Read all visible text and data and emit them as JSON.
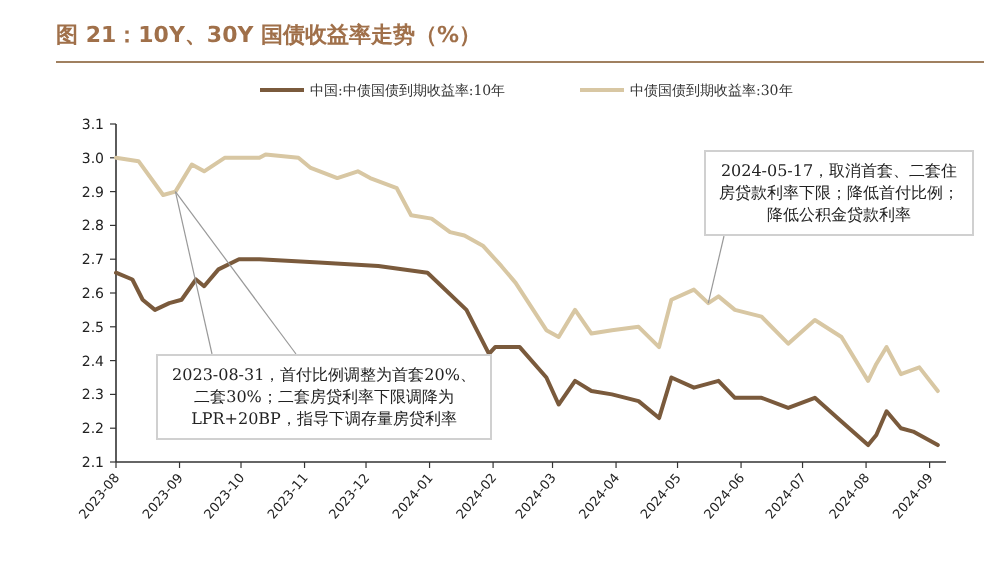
{
  "chart_data": {
    "type": "line",
    "title": "图 21：10Y、30Y 国债收益率走势（%）",
    "xlim": [
      "2023-08-01",
      "2024-09-09"
    ],
    "xticks": [
      "2023-08",
      "2023-09",
      "2023-10",
      "2023-11",
      "2023-12",
      "2024-01",
      "2024-02",
      "2024-03",
      "2024-04",
      "2024-05",
      "2024-06",
      "2024-07",
      "2024-08",
      "2024-09"
    ],
    "ylim": [
      2.1,
      3.1
    ],
    "yticks": [
      2.1,
      2.2,
      2.3,
      2.4,
      2.5,
      2.6,
      2.7,
      2.8,
      2.9,
      {
        "value": 3.0,
        "label": "3.0"
      },
      3.1
    ],
    "grid": false,
    "legend": "top",
    "marker": "none",
    "line_style": "solid",
    "series": [
      {
        "name": "中国:中债国债到期收益率:10年",
        "color": "#7a5a3c",
        "x": [
          "2023-08-01",
          "2023-08-09",
          "2023-08-14",
          "2023-08-20",
          "2023-08-27",
          "2023-09-02",
          "2023-09-09",
          "2023-09-13",
          "2023-09-20",
          "2023-09-30",
          "2023-10-10",
          "2023-11-08",
          "2023-12-07",
          "2023-12-31",
          "2024-01-19",
          "2024-01-30",
          "2024-02-02",
          "2024-02-14",
          "2024-02-27",
          "2024-03-04",
          "2024-03-12",
          "2024-03-20",
          "2024-03-30",
          "2024-04-12",
          "2024-04-22",
          "2024-04-28",
          "2024-05-09",
          "2024-05-21",
          "2024-05-29",
          "2024-06-11",
          "2024-06-24",
          "2024-07-07",
          "2024-07-20",
          "2024-08-02",
          "2024-08-06",
          "2024-08-11",
          "2024-08-18",
          "2024-08-24",
          "2024-09-05"
        ],
        "values": [
          2.66,
          2.64,
          2.58,
          2.55,
          2.57,
          2.58,
          2.64,
          2.62,
          2.67,
          2.7,
          2.7,
          2.69,
          2.68,
          2.66,
          2.55,
          2.42,
          2.44,
          2.44,
          2.35,
          2.27,
          2.34,
          2.31,
          2.3,
          2.28,
          2.23,
          2.35,
          2.32,
          2.34,
          2.29,
          2.29,
          2.26,
          2.29,
          2.22,
          2.15,
          2.18,
          2.25,
          2.2,
          2.19,
          2.15
        ]
      },
      {
        "name": "中债国债到期收益率:30年",
        "color": "#d8c7a3",
        "x": [
          "2023-08-01",
          "2023-08-12",
          "2023-08-24",
          "2023-08-30",
          "2023-09-07",
          "2023-09-13",
          "2023-09-23",
          "2023-10-10",
          "2023-10-13",
          "2023-10-29",
          "2023-11-04",
          "2023-11-17",
          "2023-11-27",
          "2023-12-03",
          "2023-12-16",
          "2023-12-23",
          "2024-01-02",
          "2024-01-11",
          "2024-01-18",
          "2024-01-27",
          "2024-02-05",
          "2024-02-12",
          "2024-02-27",
          "2024-03-04",
          "2024-03-12",
          "2024-03-20",
          "2024-03-30",
          "2024-04-12",
          "2024-04-22",
          "2024-04-28",
          "2024-05-09",
          "2024-05-16",
          "2024-05-21",
          "2024-05-29",
          "2024-06-11",
          "2024-06-24",
          "2024-07-07",
          "2024-07-20",
          "2024-08-02",
          "2024-08-06",
          "2024-08-11",
          "2024-08-18",
          "2024-08-27",
          "2024-09-05"
        ],
        "values": [
          3.0,
          2.99,
          2.89,
          2.9,
          2.98,
          2.96,
          3.0,
          3.0,
          3.01,
          3.0,
          2.97,
          2.94,
          2.96,
          2.94,
          2.91,
          2.83,
          2.82,
          2.78,
          2.77,
          2.74,
          2.68,
          2.63,
          2.49,
          2.47,
          2.55,
          2.48,
          2.49,
          2.5,
          2.44,
          2.58,
          2.61,
          2.57,
          2.59,
          2.55,
          2.53,
          2.45,
          2.52,
          2.47,
          2.34,
          2.39,
          2.44,
          2.36,
          2.38,
          2.31
        ]
      }
    ],
    "annotations": [
      {
        "text": "2023-08-31，首付比例调整为首套20%、二套30%；二套房贷利率下限调降为LPR+20BP，指导下调存量房贷利率",
        "x": "2023-08-30",
        "y": 2.9
      },
      {
        "text": "2024-05-17，取消首套、二套住房贷款利率下限；降低首付比例；降低公积金贷款利率",
        "x": "2024-05-16",
        "y": 2.57
      }
    ]
  }
}
